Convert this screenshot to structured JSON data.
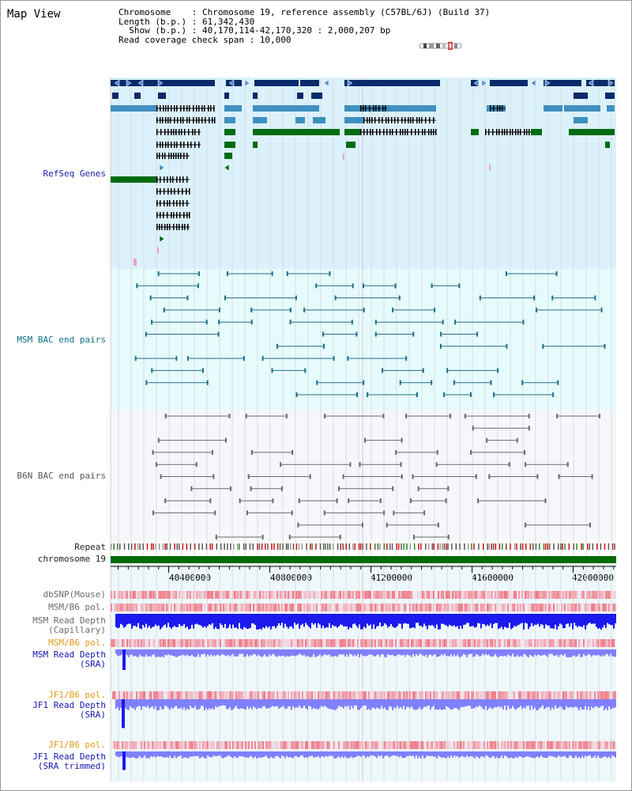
{
  "app": {
    "title": "Map View"
  },
  "header": {
    "lines": [
      "Chromosome    : Chromosome 19, reference assembly (C57BL/6J) (Build 37)",
      "Length (b.p.) : 61,342,430",
      "  Show (b.p.) : 40,170,114-42,170,320 : 2,000,207 bp",
      "Read coverage check span : 10,000"
    ]
  },
  "tracks": {
    "refseq": "RefSeq Genes",
    "msm_bac": "MSM BAC end pairs",
    "b6n_bac": "B6N BAC end pairs",
    "repeat": "Repeat",
    "chromosome": "chromosome 19",
    "dbsnp": "dbSNP(Mouse)",
    "msm_b6_pol_1": "MSM/B6 pol.",
    "msm_depth_cap": "MSM Read Depth\n(Capillary)",
    "msm_b6_pol_2": "MSM/B6 pol.",
    "msm_depth_sra": "MSM Read Depth\n(SRA)",
    "jf1_b6_pol_1": "JF1/B6 pol.",
    "jf1_depth_sra": "JF1 Read Depth\n(SRA)",
    "jf1_b6_pol_2": "JF1/B6 pol.",
    "jf1_depth_trim": "JF1 Read Depth\n(SRA trimmed)"
  },
  "axis": {
    "ticks": [
      "40400000",
      "40800000",
      "41200000",
      "41600000",
      "42000000"
    ],
    "tick_values": [
      40400000,
      40800000,
      41200000,
      41600000,
      42000000
    ],
    "start": 40170114,
    "end": 42170320
  },
  "colors": {
    "navy": "#0a2a6a",
    "teal_gene": "#3f8fbf",
    "green_gene": "#006b12",
    "bac_msm": "#1f6f8f",
    "bac_b6n": "#6a6a6a",
    "chrom_bar": "#006b00",
    "depth_blue": "#1a1aee",
    "depth_light": "#8080ff",
    "pol_red": "#f06070"
  }
}
